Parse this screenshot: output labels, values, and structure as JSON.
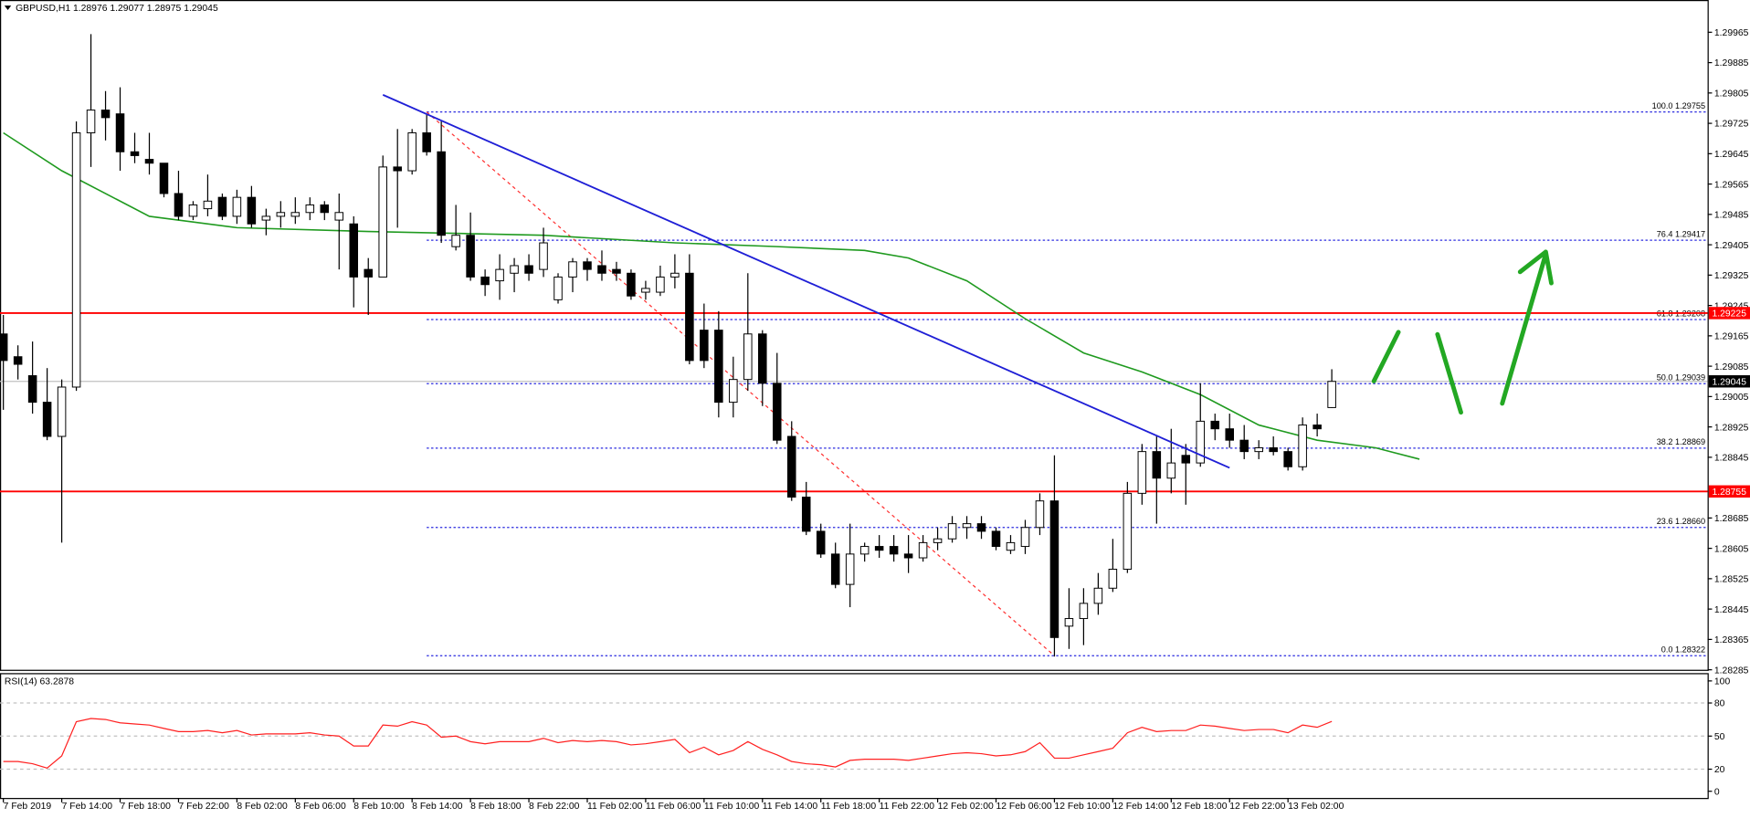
{
  "chart_data": {
    "type": "candlestick",
    "title": "GBPUSD,H1  1.28976 1.29077 1.28975 1.29045",
    "categories": [
      "7 Feb 2019",
      null,
      null,
      null,
      "7 Feb 14:00",
      null,
      null,
      null,
      "7 Feb 18:00",
      null,
      null,
      null,
      "7 Feb 22:00",
      null,
      null,
      null,
      "8 Feb 02:00",
      null,
      null,
      null,
      "8 Feb 06:00",
      null,
      null,
      null,
      "8 Feb 10:00",
      null,
      null,
      null,
      "8 Feb 14:00",
      null,
      null,
      null,
      "8 Feb 18:00",
      null,
      null,
      null,
      "8 Feb 22:00",
      null,
      null,
      null,
      "11 Feb 02:00",
      null,
      null,
      null,
      "11 Feb 06:00",
      null,
      null,
      null,
      "11 Feb 10:00",
      null,
      null,
      null,
      "11 Feb 14:00",
      null,
      null,
      null,
      "11 Feb 18:00",
      null,
      null,
      null,
      "11 Feb 22:00",
      null,
      null,
      null,
      "12 Feb 02:00",
      null,
      null,
      null,
      "12 Feb 06:00",
      null,
      null,
      null,
      "12 Feb 10:00",
      null,
      null,
      null,
      "12 Feb 14:00",
      null,
      null,
      null,
      "12 Feb 18:00",
      null,
      null,
      null,
      "12 Feb 22:00",
      null,
      null,
      null,
      "13 Feb 02:00",
      null,
      null,
      null
    ],
    "open": [
      1.2917,
      1.2911,
      1.2906,
      1.2899,
      1.289,
      1.2903,
      1.297,
      1.2976,
      1.2975,
      1.2965,
      1.2963,
      1.2962,
      1.2954,
      1.2948,
      1.295,
      1.2953,
      1.2948,
      1.2953,
      1.2947,
      1.2948,
      1.2948,
      1.2949,
      1.2951,
      1.2947,
      1.2946,
      1.2934,
      1.2932,
      1.2961,
      1.296,
      1.297,
      1.2965,
      1.294,
      1.2943,
      1.2932,
      1.2931,
      1.2933,
      1.2935,
      1.2934,
      1.2926,
      1.2932,
      1.2936,
      1.2935,
      1.2934,
      1.2933,
      1.2928,
      1.2928,
      1.2932,
      1.2933,
      1.2918,
      1.2918,
      1.2899,
      1.2905,
      1.2917,
      1.2904,
      1.289,
      1.2874,
      1.2865,
      1.2859,
      1.2851,
      1.2859,
      1.2861,
      1.2861,
      1.2859,
      1.2858,
      1.2862,
      1.2863,
      1.2866,
      1.2867,
      1.2865,
      1.286,
      1.2861,
      1.2866,
      1.2873,
      1.284,
      1.2842,
      1.2846,
      1.285,
      1.2855,
      1.2875,
      1.2886,
      1.2879,
      1.2885,
      1.2883,
      1.2894,
      1.2892,
      1.2889,
      1.2886,
      1.2887,
      1.2886,
      1.2882,
      1.2893,
      1.28976
    ],
    "high": [
      1.2922,
      1.2914,
      1.2915,
      1.2908,
      1.2905,
      1.2973,
      1.2996,
      1.2981,
      1.2982,
      1.297,
      1.297,
      1.2962,
      1.296,
      1.2952,
      1.2959,
      1.2954,
      1.2955,
      1.2956,
      1.295,
      1.2952,
      1.2953,
      1.2953,
      1.2952,
      1.2954,
      1.2948,
      1.2937,
      1.2964,
      1.2971,
      1.2971,
      1.2975,
      1.2973,
      1.2951,
      1.2949,
      1.2934,
      1.2938,
      1.2937,
      1.2938,
      1.2945,
      1.2933,
      1.2937,
      1.2937,
      1.2939,
      1.2936,
      1.2934,
      1.2931,
      1.2935,
      1.2938,
      1.2938,
      1.2925,
      1.2923,
      1.2911,
      1.2933,
      1.2918,
      1.2912,
      1.2894,
      1.2878,
      1.2867,
      1.2862,
      1.2867,
      1.2862,
      1.2864,
      1.2864,
      1.2864,
      1.2864,
      1.2866,
      1.2869,
      1.2869,
      1.2869,
      1.2866,
      1.2864,
      1.2868,
      1.2875,
      1.2885,
      1.285,
      1.285,
      1.2854,
      1.2863,
      1.2878,
      1.2888,
      1.289,
      1.2892,
      1.2888,
      1.2904,
      1.2896,
      1.2896,
      1.2893,
      1.2889,
      1.289,
      1.2887,
      1.2895,
      1.2896,
      1.29077
    ],
    "low": [
      1.2897,
      1.2905,
      1.2896,
      1.2889,
      1.2862,
      1.2902,
      1.2961,
      1.2968,
      1.296,
      1.2962,
      1.2959,
      1.2953,
      1.2947,
      1.2947,
      1.2948,
      1.2947,
      1.2946,
      1.2945,
      1.2943,
      1.2945,
      1.2946,
      1.2947,
      1.2947,
      1.2934,
      1.2924,
      1.2922,
      1.2932,
      1.2945,
      1.2959,
      1.2964,
      1.2941,
      1.2939,
      1.2931,
      1.2927,
      1.2926,
      1.2928,
      1.2931,
      1.2932,
      1.2925,
      1.2928,
      1.2931,
      1.2931,
      1.2931,
      1.2926,
      1.2926,
      1.2927,
      1.2929,
      1.2909,
      1.2908,
      1.2895,
      1.2895,
      1.2902,
      1.2898,
      1.2888,
      1.2873,
      1.2864,
      1.2858,
      1.285,
      1.2845,
      1.2857,
      1.2858,
      1.2857,
      1.2854,
      1.2857,
      1.286,
      1.2862,
      1.2863,
      1.2863,
      1.286,
      1.2859,
      1.2859,
      1.2864,
      1.2832,
      1.2834,
      1.2835,
      1.2843,
      1.2849,
      1.2854,
      1.2872,
      1.2867,
      1.2875,
      1.2872,
      1.2882,
      1.2889,
      1.2887,
      1.2884,
      1.2884,
      1.2885,
      1.2881,
      1.2881,
      1.289,
      1.28975
    ],
    "close": [
      1.291,
      1.2909,
      1.2899,
      1.289,
      1.2903,
      1.297,
      1.2976,
      1.2974,
      1.2965,
      1.2964,
      1.2962,
      1.2954,
      1.2948,
      1.2951,
      1.2952,
      1.2948,
      1.2953,
      1.2946,
      1.2948,
      1.2949,
      1.2949,
      1.2951,
      1.2949,
      1.2949,
      1.2932,
      1.2932,
      1.2961,
      1.296,
      1.297,
      1.2965,
      1.2943,
      1.2943,
      1.2932,
      1.293,
      1.2934,
      1.2935,
      1.2933,
      1.2941,
      1.2932,
      1.2936,
      1.2934,
      1.2933,
      1.2933,
      1.2927,
      1.2929,
      1.2932,
      1.2933,
      1.291,
      1.291,
      1.2899,
      1.2905,
      1.2917,
      1.2904,
      1.2889,
      1.2874,
      1.2865,
      1.2859,
      1.2851,
      1.2859,
      1.2861,
      1.286,
      1.2859,
      1.2858,
      1.2862,
      1.2863,
      1.2867,
      1.2867,
      1.2865,
      1.2861,
      1.2862,
      1.2866,
      1.2873,
      1.2837,
      1.2842,
      1.2846,
      1.285,
      1.2855,
      1.2875,
      1.2886,
      1.2879,
      1.2883,
      1.2883,
      1.2894,
      1.2892,
      1.2889,
      1.2886,
      1.2887,
      1.2886,
      1.2882,
      1.2893,
      1.2892,
      1.29045
    ],
    "up_color": "#ffffff",
    "down_color": "#000000",
    "ylim": [
      1.28285,
      1.3005
    ],
    "yticks": [
      1.29965,
      1.29885,
      1.29805,
      1.29725,
      1.29645,
      1.29565,
      1.29485,
      1.29405,
      1.29325,
      1.29245,
      1.29165,
      1.29085,
      1.29005,
      1.28925,
      1.28845,
      1.28685,
      1.28605,
      1.28525,
      1.28445,
      1.28365,
      1.28285
    ],
    "current_price": 1.29045,
    "ma": {
      "color": "#1f9a1f",
      "x": [
        0,
        4,
        10,
        16,
        25,
        37,
        46,
        53,
        59,
        62,
        66,
        70,
        74,
        78,
        82,
        86,
        90,
        94,
        97
      ],
      "values": [
        1.297,
        1.296,
        1.2948,
        1.2945,
        1.2944,
        1.2943,
        1.2941,
        1.294,
        1.2939,
        1.2937,
        1.2931,
        1.2921,
        1.2912,
        1.2907,
        1.2901,
        1.2893,
        1.2889,
        1.2887,
        1.2884
      ]
    },
    "trendline": {
      "color": "#1f1fd6",
      "x": [
        26,
        84
      ],
      "values": [
        1.298,
        1.28817
      ]
    },
    "fib_line": {
      "color": "#ff3030",
      "x": [
        29,
        72
      ],
      "values": [
        1.29755,
        1.28322
      ]
    },
    "fib_color": "#2a2adf",
    "fib_levels": [
      {
        "value": 1.29755,
        "label": "100.0 1.29755"
      },
      {
        "value": 1.29417,
        "label": "76.4 1.29417"
      },
      {
        "value": 1.29208,
        "label": "61.8 1.29208"
      },
      {
        "value": 1.29039,
        "label": "50.0 1.29039"
      },
      {
        "value": 1.28869,
        "label": "38.2 1.28869"
      },
      {
        "value": 1.2866,
        "label": "23.6 1.28660"
      },
      {
        "value": 1.28322,
        "label": "0.0 1.28322"
      }
    ],
    "levels": {
      "color": "#ff0000",
      "values": [
        1.29225,
        1.28755
      ]
    },
    "rsi": {
      "title": "RSI(14) 63.2878",
      "color": "#ff2020",
      "ylim": [
        0,
        100
      ],
      "yticks": [
        100,
        80,
        50,
        20,
        0
      ],
      "grid_levels": [
        80,
        50,
        20
      ],
      "values": [
        27,
        27,
        25,
        21,
        32,
        63,
        66,
        65,
        62,
        61,
        60,
        57,
        54,
        54,
        55,
        53,
        55,
        51,
        52,
        52,
        52,
        53,
        51,
        50,
        41,
        41,
        60,
        59,
        63,
        60,
        49,
        50,
        45,
        43,
        45,
        45,
        45,
        48,
        44,
        46,
        45,
        46,
        45,
        42,
        43,
        45,
        47,
        35,
        40,
        33,
        37,
        45,
        38,
        33,
        27,
        25,
        24,
        22,
        28,
        29,
        29,
        29,
        28,
        30,
        32,
        34,
        35,
        34,
        32,
        33,
        36,
        44,
        30,
        30,
        33,
        36,
        39,
        53,
        58,
        54,
        55,
        55,
        60,
        59,
        57,
        55,
        56,
        56,
        53,
        60,
        58,
        63.2878
      ]
    }
  }
}
